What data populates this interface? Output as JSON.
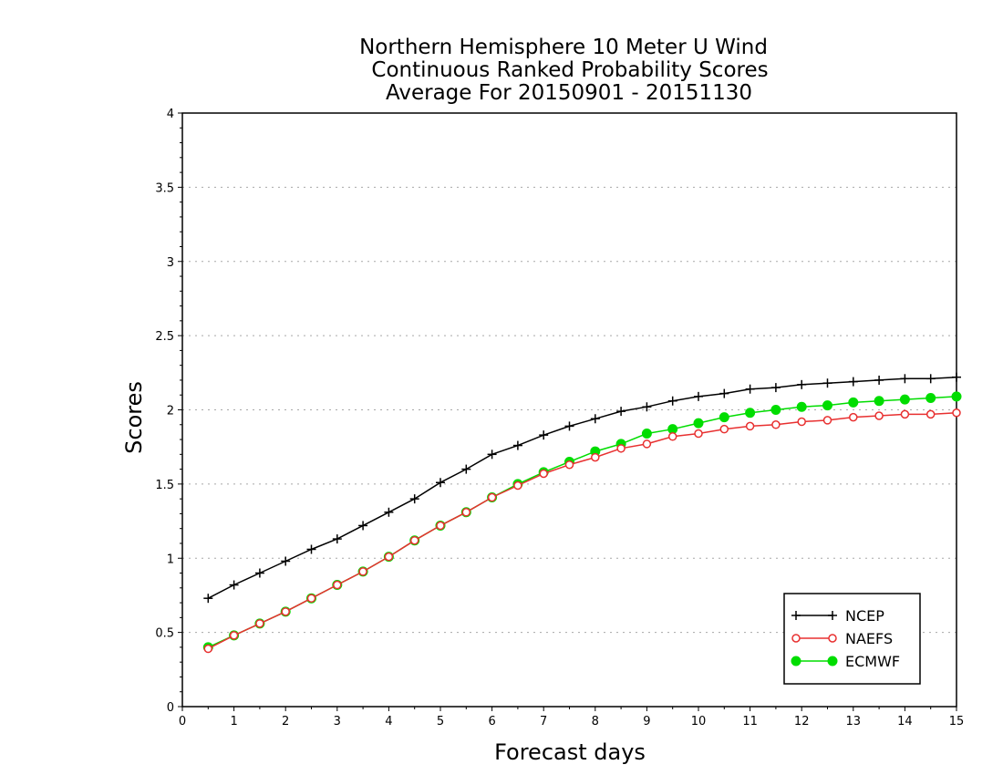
{
  "chart_data": {
    "type": "line",
    "title_lines": [
      "Northern Hemisphere 10 Meter U Wind",
      "Continuous Ranked Probability Scores",
      "Average For 20150901 - 20151130"
    ],
    "xlabel": "Forecast days",
    "ylabel": "Scores",
    "xlim": [
      0,
      15
    ],
    "ylim": [
      0,
      4
    ],
    "x_ticks": [
      0,
      1,
      2,
      3,
      4,
      5,
      6,
      7,
      8,
      9,
      10,
      11,
      12,
      13,
      14,
      15
    ],
    "x_tick_labels": [
      "0",
      "1",
      "2",
      "3",
      "4",
      "5",
      "6",
      "7",
      "8",
      "9",
      "10",
      "11",
      "12",
      "13",
      "14",
      "15"
    ],
    "y_ticks": [
      0,
      0.5,
      1,
      1.5,
      2,
      2.5,
      3,
      3.5,
      4
    ],
    "y_tick_labels": [
      "0",
      "0.5",
      "1",
      "1.5",
      "2",
      "2.5",
      "3",
      "3.5",
      "4"
    ],
    "grid": "horizontal dotted",
    "legend_position": "bottom-right",
    "x": [
      0.5,
      1,
      1.5,
      2,
      2.5,
      3,
      3.5,
      4,
      4.5,
      5,
      5.5,
      6,
      6.5,
      7,
      7.5,
      8,
      8.5,
      9,
      9.5,
      10,
      10.5,
      11,
      11.5,
      12,
      12.5,
      13,
      13.5,
      14,
      14.5,
      15
    ],
    "series": [
      {
        "name": "NCEP",
        "color": "#000000",
        "marker": "plus",
        "values": [
          0.73,
          0.82,
          0.9,
          0.98,
          1.06,
          1.13,
          1.22,
          1.31,
          1.4,
          1.51,
          1.6,
          1.7,
          1.76,
          1.83,
          1.89,
          1.94,
          1.99,
          2.02,
          2.06,
          2.09,
          2.11,
          2.14,
          2.15,
          2.17,
          2.18,
          2.19,
          2.2,
          2.21,
          2.21,
          2.22
        ]
      },
      {
        "name": "NAEFS",
        "color": "#e83030",
        "marker": "open-circle",
        "values": [
          0.39,
          0.48,
          0.56,
          0.64,
          0.73,
          0.82,
          0.91,
          1.01,
          1.12,
          1.22,
          1.31,
          1.41,
          1.49,
          1.57,
          1.63,
          1.68,
          1.74,
          1.77,
          1.82,
          1.84,
          1.87,
          1.89,
          1.9,
          1.92,
          1.93,
          1.95,
          1.96,
          1.97,
          1.97,
          1.98
        ]
      },
      {
        "name": "ECMWF",
        "color": "#00dd00",
        "marker": "filled-circle",
        "values": [
          0.4,
          0.48,
          0.56,
          0.64,
          0.73,
          0.82,
          0.91,
          1.01,
          1.12,
          1.22,
          1.31,
          1.41,
          1.5,
          1.58,
          1.65,
          1.72,
          1.77,
          1.84,
          1.87,
          1.91,
          1.95,
          1.98,
          2.0,
          2.02,
          2.03,
          2.05,
          2.06,
          2.07,
          2.08,
          2.09
        ]
      }
    ]
  }
}
